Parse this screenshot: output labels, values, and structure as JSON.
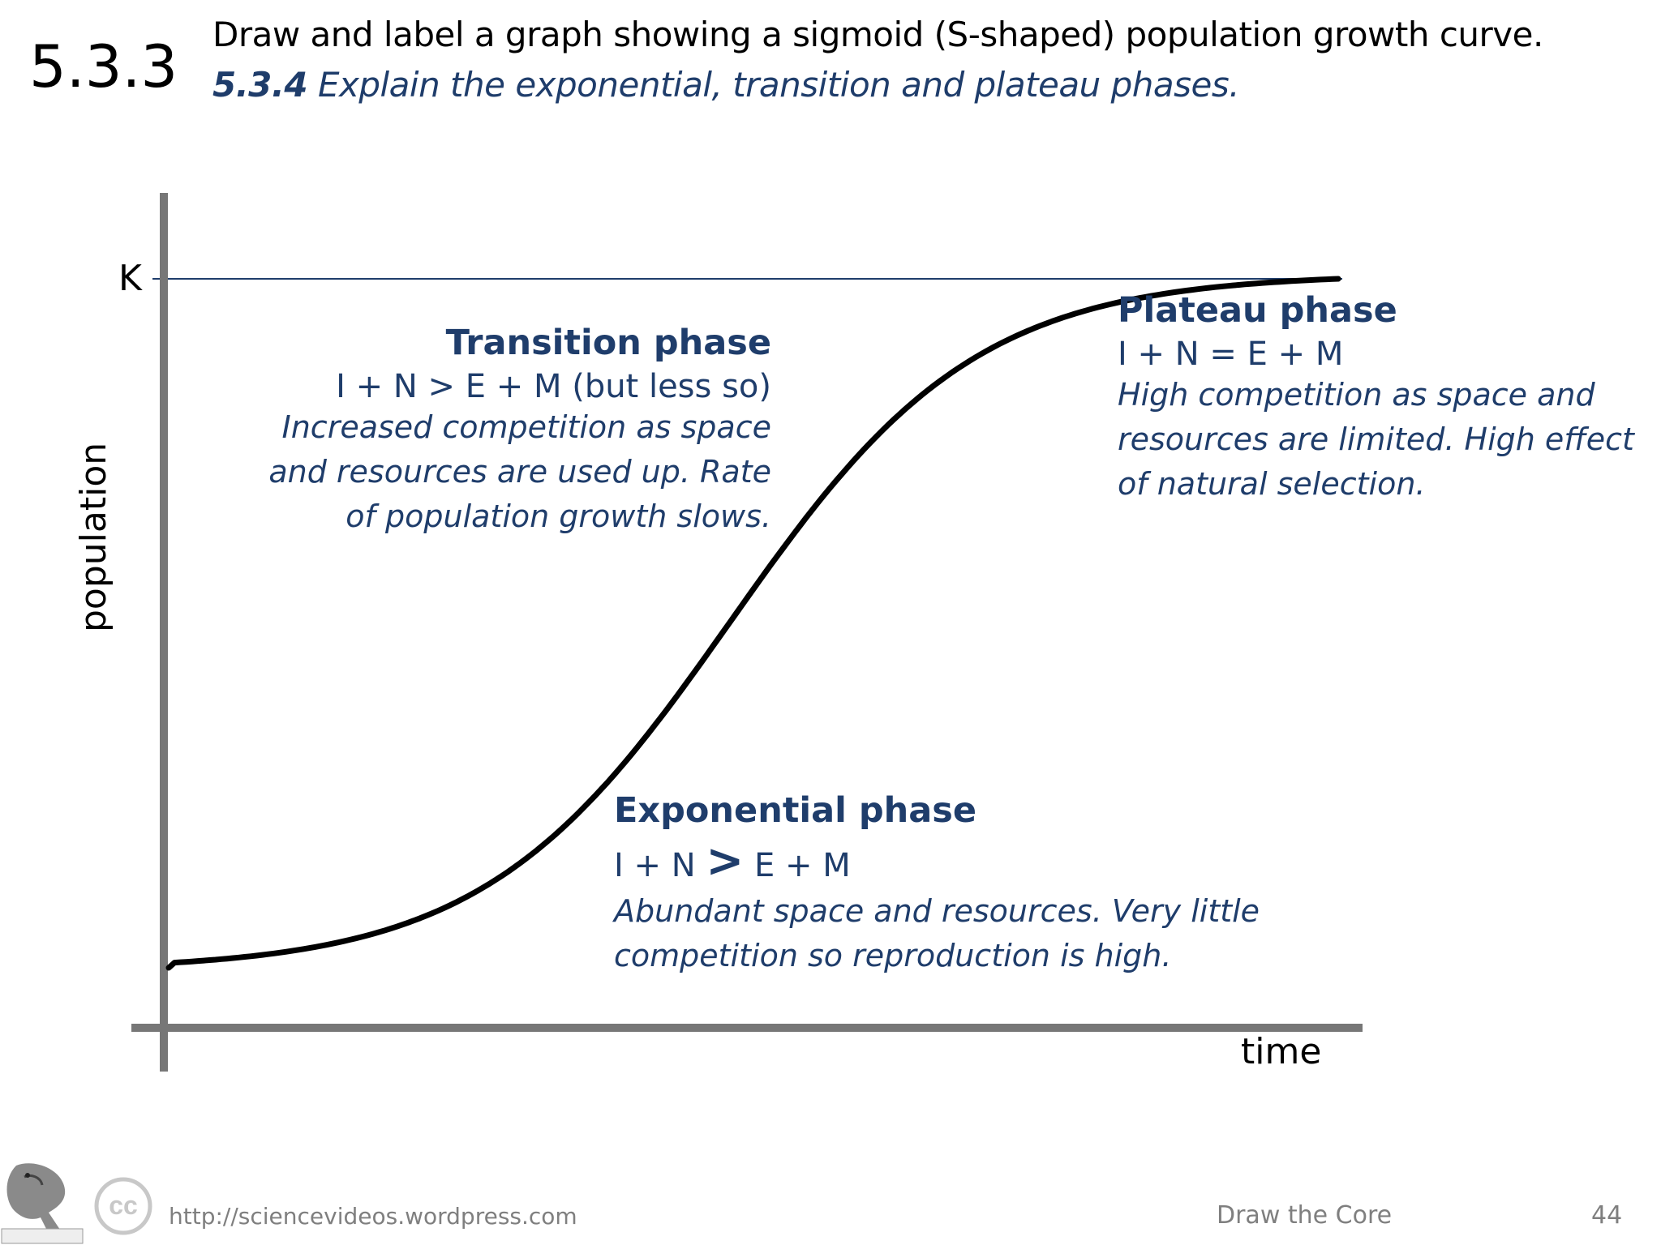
{
  "header": {
    "number": "5.3.3",
    "objective_1": "Draw and label a graph showing a sigmoid (S-shaped) population growth curve.",
    "objective_2_code": "5.3.4",
    "objective_2_text": " Explain the exponential, transition and plateau phases."
  },
  "graph": {
    "k_label": "K",
    "y_axis_label": "population",
    "x_axis_label": "time",
    "curve_type": "sigmoid",
    "colors": {
      "curve": "#000000",
      "k_line": "#1f3d6b",
      "axes": "#777777",
      "phase_text": "#1f3d6b"
    }
  },
  "phases": {
    "transition": {
      "title": "Transition phase",
      "equation": "I + N > E + M (but less so)",
      "description": "Increased competition as space\nand resources are used up. Rate\nof population growth slows."
    },
    "plateau": {
      "title": "Plateau phase",
      "equation": "I + N = E + M",
      "description": "High competition as space and\nresources are limited. High effect\nof natural selection."
    },
    "exponential": {
      "title": "Exponential phase",
      "equation_left": "I + N ",
      "equation_symbol": ">",
      "equation_right": " E + M",
      "description": "Abundant space and resources. Very little\ncompetition so reproduction is high."
    }
  },
  "footer": {
    "url": "http://sciencevideos.wordpress.com",
    "title": "Draw the Core",
    "page": "44",
    "logo_icon": "lizard-logo-icon",
    "license_icon": "creative-commons-icon",
    "license_text": "cc"
  }
}
